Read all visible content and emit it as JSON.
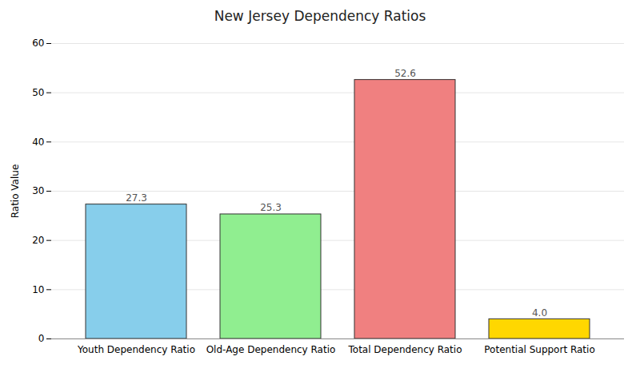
{
  "chart_data": {
    "type": "bar",
    "title": "New Jersey Dependency Ratios",
    "ylabel": "Ratio Value",
    "categories": [
      "Youth Dependency Ratio",
      "Old-Age Dependency Ratio",
      "Total Dependency Ratio",
      "Potential Support Ratio"
    ],
    "values": [
      27.3,
      25.3,
      52.6,
      4.0
    ],
    "value_labels": [
      "27.3",
      "25.3",
      "52.6",
      "4.0"
    ],
    "colors": [
      "#87CEEB",
      "#90EE90",
      "#F08080",
      "#FFD700"
    ],
    "ylim": [
      0,
      60
    ],
    "yticks": [
      0,
      10,
      20,
      30,
      40,
      50,
      60
    ],
    "grid": true,
    "data_labels": true
  }
}
